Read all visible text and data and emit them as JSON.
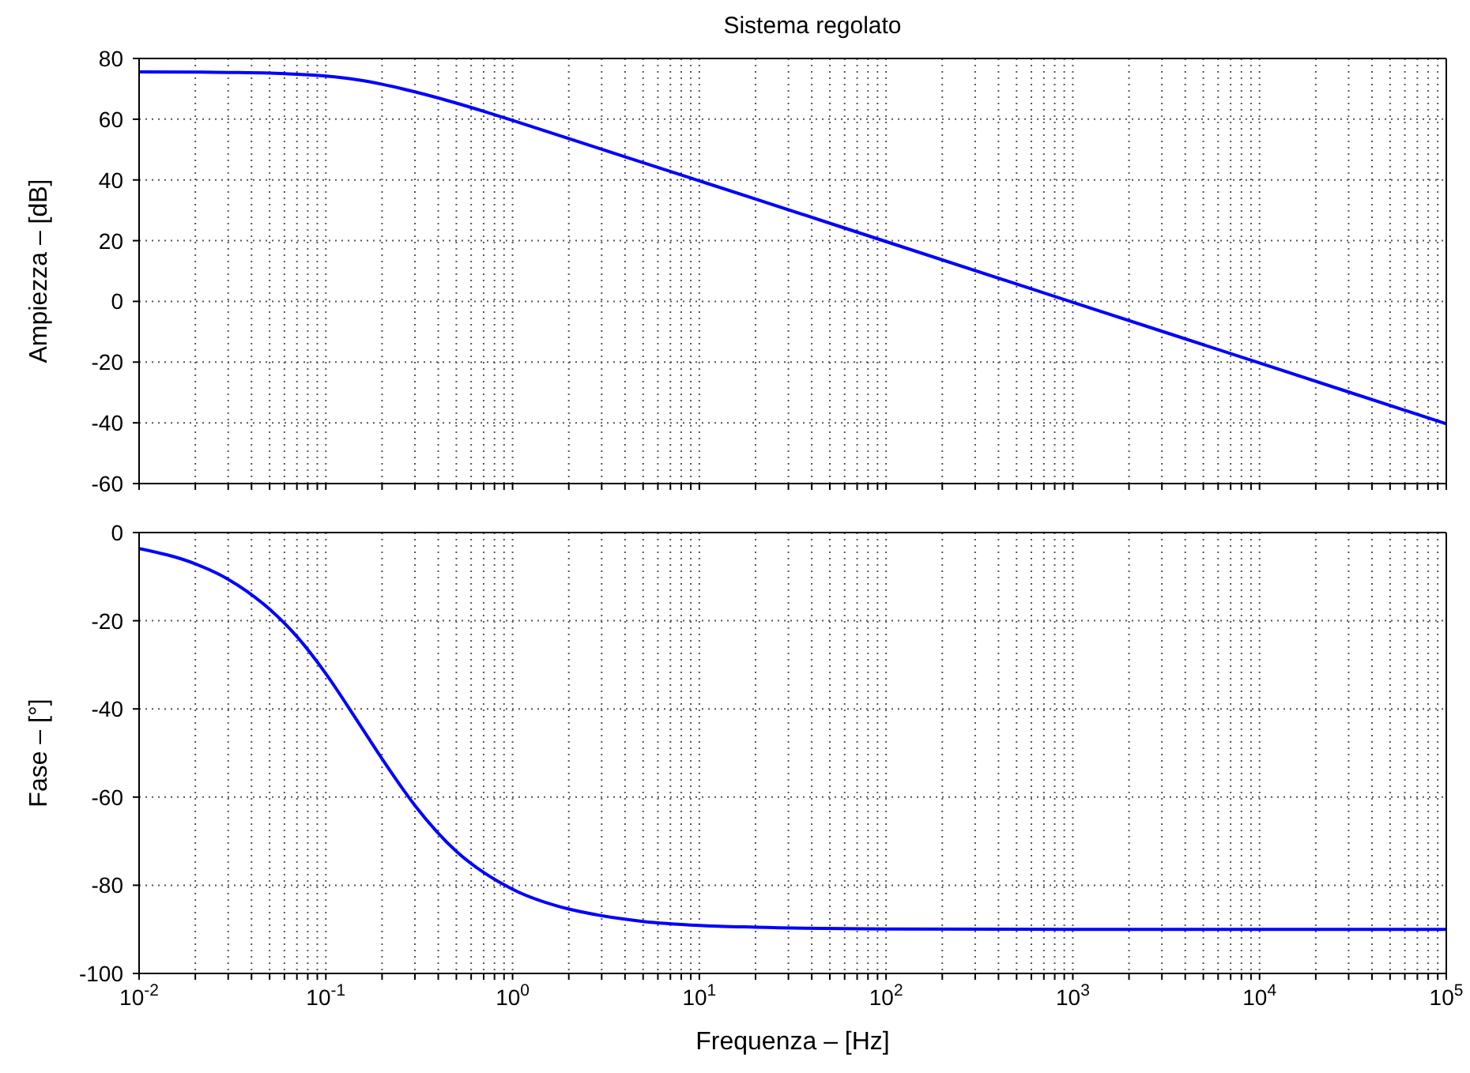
{
  "chart_data": [
    {
      "type": "line",
      "title": "Sistema regolato",
      "ylabel": "Ampiezza – [dB]",
      "log": "x",
      "grid": true,
      "tick_labels": "y",
      "xlim": [
        0.01,
        100000
      ],
      "xticks": [
        {
          "value": 0.01,
          "label": null
        },
        {
          "value": 0.02,
          "label": null
        },
        {
          "value": 0.03,
          "label": null
        },
        {
          "value": 0.04,
          "label": null
        },
        {
          "value": 0.05,
          "label": null
        },
        {
          "value": 0.06,
          "label": null
        },
        {
          "value": 0.07,
          "label": null
        },
        {
          "value": 0.08,
          "label": null
        },
        {
          "value": 0.09,
          "label": null
        },
        {
          "value": 0.1,
          "label": null
        },
        {
          "value": 0.2,
          "label": null
        },
        {
          "value": 0.3,
          "label": null
        },
        {
          "value": 0.4,
          "label": null
        },
        {
          "value": 0.5,
          "label": null
        },
        {
          "value": 0.6,
          "label": null
        },
        {
          "value": 0.7,
          "label": null
        },
        {
          "value": 0.8,
          "label": null
        },
        {
          "value": 0.9,
          "label": null
        },
        {
          "value": 1,
          "label": null
        },
        {
          "value": 2,
          "label": null
        },
        {
          "value": 3,
          "label": null
        },
        {
          "value": 4,
          "label": null
        },
        {
          "value": 5,
          "label": null
        },
        {
          "value": 6,
          "label": null
        },
        {
          "value": 7,
          "label": null
        },
        {
          "value": 8,
          "label": null
        },
        {
          "value": 9,
          "label": null
        },
        {
          "value": 10,
          "label": null
        },
        {
          "value": 20,
          "label": null
        },
        {
          "value": 30,
          "label": null
        },
        {
          "value": 40,
          "label": null
        },
        {
          "value": 50,
          "label": null
        },
        {
          "value": 60,
          "label": null
        },
        {
          "value": 70,
          "label": null
        },
        {
          "value": 80,
          "label": null
        },
        {
          "value": 90,
          "label": null
        },
        {
          "value": 100,
          "label": null
        },
        {
          "value": 200,
          "label": null
        },
        {
          "value": 300,
          "label": null
        },
        {
          "value": 400,
          "label": null
        },
        {
          "value": 500,
          "label": null
        },
        {
          "value": 600,
          "label": null
        },
        {
          "value": 700,
          "label": null
        },
        {
          "value": 800,
          "label": null
        },
        {
          "value": 900,
          "label": null
        },
        {
          "value": 1000,
          "label": null
        },
        {
          "value": 2000,
          "label": null
        },
        {
          "value": 3000,
          "label": null
        },
        {
          "value": 4000,
          "label": null
        },
        {
          "value": 5000,
          "label": null
        },
        {
          "value": 6000,
          "label": null
        },
        {
          "value": 7000,
          "label": null
        },
        {
          "value": 8000,
          "label": null
        },
        {
          "value": 9000,
          "label": null
        },
        {
          "value": 10000,
          "label": null
        },
        {
          "value": 20000,
          "label": null
        },
        {
          "value": 30000,
          "label": null
        },
        {
          "value": 40000,
          "label": null
        },
        {
          "value": 50000,
          "label": null
        },
        {
          "value": 60000,
          "label": null
        },
        {
          "value": 70000,
          "label": null
        },
        {
          "value": 80000,
          "label": null
        },
        {
          "value": 90000,
          "label": null
        },
        {
          "value": 100000,
          "label": null
        }
      ],
      "ylim": [
        -60,
        80
      ],
      "yticks": [
        -60,
        -40,
        -20,
        0,
        20,
        40,
        60,
        80
      ],
      "series": [
        {
          "color": "#0000ff",
          "x": [
            0.01,
            0.02,
            0.03,
            0.05,
            0.07,
            0.1,
            0.15,
            0.2,
            0.3,
            0.5,
            0.7,
            1,
            2,
            3,
            5,
            10,
            20,
            100,
            1000,
            10000,
            100000
          ],
          "values": [
            75.6,
            75.5,
            75.4,
            75.2,
            74.8,
            74.2,
            72.9,
            71.5,
            69,
            65.3,
            62.6,
            59.6,
            53.6,
            50.1,
            45.7,
            39.7,
            33.7,
            19.7,
            -0.3,
            -20.3,
            -40.3
          ]
        }
      ]
    },
    {
      "type": "line",
      "xlabel": "Frequenza – [Hz]",
      "ylabel": "Fase – [°]",
      "log": "x",
      "grid": true,
      "xlim": [
        0.01,
        100000
      ],
      "xticks": [
        {
          "value": 0.01,
          "label": "10$^{-2}$"
        },
        {
          "value": 0.02,
          "label": null
        },
        {
          "value": 0.03,
          "label": null
        },
        {
          "value": 0.04,
          "label": null
        },
        {
          "value": 0.05,
          "label": null
        },
        {
          "value": 0.06,
          "label": null
        },
        {
          "value": 0.07,
          "label": null
        },
        {
          "value": 0.08,
          "label": null
        },
        {
          "value": 0.09,
          "label": null
        },
        {
          "value": 0.1,
          "label": "10$^{-1}$"
        },
        {
          "value": 0.2,
          "label": null
        },
        {
          "value": 0.3,
          "label": null
        },
        {
          "value": 0.4,
          "label": null
        },
        {
          "value": 0.5,
          "label": null
        },
        {
          "value": 0.6,
          "label": null
        },
        {
          "value": 0.7,
          "label": null
        },
        {
          "value": 0.8,
          "label": null
        },
        {
          "value": 0.9,
          "label": null
        },
        {
          "value": 1,
          "label": "10$^{0}$"
        },
        {
          "value": 2,
          "label": null
        },
        {
          "value": 3,
          "label": null
        },
        {
          "value": 4,
          "label": null
        },
        {
          "value": 5,
          "label": null
        },
        {
          "value": 6,
          "label": null
        },
        {
          "value": 7,
          "label": null
        },
        {
          "value": 8,
          "label": null
        },
        {
          "value": 9,
          "label": null
        },
        {
          "value": 10,
          "label": "10$^{1}$"
        },
        {
          "value": 20,
          "label": null
        },
        {
          "value": 30,
          "label": null
        },
        {
          "value": 40,
          "label": null
        },
        {
          "value": 50,
          "label": null
        },
        {
          "value": 60,
          "label": null
        },
        {
          "value": 70,
          "label": null
        },
        {
          "value": 80,
          "label": null
        },
        {
          "value": 90,
          "label": null
        },
        {
          "value": 100,
          "label": "10$^{2}$"
        },
        {
          "value": 200,
          "label": null
        },
        {
          "value": 300,
          "label": null
        },
        {
          "value": 400,
          "label": null
        },
        {
          "value": 500,
          "label": null
        },
        {
          "value": 600,
          "label": null
        },
        {
          "value": 700,
          "label": null
        },
        {
          "value": 800,
          "label": null
        },
        {
          "value": 900,
          "label": null
        },
        {
          "value": 1000,
          "label": "10$^{3}$"
        },
        {
          "value": 2000,
          "label": null
        },
        {
          "value": 3000,
          "label": null
        },
        {
          "value": 4000,
          "label": null
        },
        {
          "value": 5000,
          "label": null
        },
        {
          "value": 6000,
          "label": null
        },
        {
          "value": 7000,
          "label": null
        },
        {
          "value": 8000,
          "label": null
        },
        {
          "value": 9000,
          "label": null
        },
        {
          "value": 10000,
          "label": "10$^{4}$"
        },
        {
          "value": 20000,
          "label": null
        },
        {
          "value": 30000,
          "label": null
        },
        {
          "value": 40000,
          "label": null
        },
        {
          "value": 50000,
          "label": null
        },
        {
          "value": 60000,
          "label": null
        },
        {
          "value": 70000,
          "label": null
        },
        {
          "value": 80000,
          "label": null
        },
        {
          "value": 90000,
          "label": null
        },
        {
          "value": 100000,
          "label": "10$^{5}$"
        }
      ],
      "ylim": [
        -100,
        0
      ],
      "yticks": [
        -100,
        -80,
        -60,
        -40,
        -20,
        0
      ],
      "series": [
        {
          "color": "#0000ff",
          "x": [
            0.01,
            0.02,
            0.03,
            0.05,
            0.07,
            0.1,
            0.15,
            0.2,
            0.3,
            0.5,
            0.7,
            1,
            2,
            3,
            5,
            10,
            20,
            100,
            1000,
            10000,
            100000
          ],
          "values": [
            -3.6,
            -7.1,
            -10.6,
            -17.4,
            -23.6,
            -32,
            -43.2,
            -51.3,
            -61.9,
            -72.3,
            -77.1,
            -80.9,
            -85.4,
            -86.9,
            -88.2,
            -89.1,
            -89.5,
            -89.9,
            -90,
            -90,
            -90
          ]
        }
      ]
    }
  ]
}
